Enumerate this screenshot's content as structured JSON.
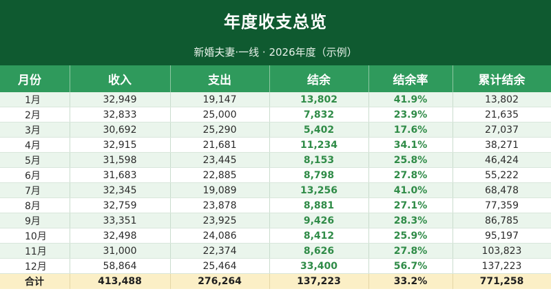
{
  "title": "年度收支总览",
  "subtitle": "新婚夫妻·一线 · 2026年度（示例）",
  "headers": [
    "月份",
    "收入",
    "支出",
    "结余",
    "结余率",
    "累计结余"
  ],
  "rows": [
    [
      "1月",
      "32,949",
      "19,147",
      "13,802",
      "41.9%",
      "13,802"
    ],
    [
      "2月",
      "32,833",
      "25,000",
      "7,832",
      "23.9%",
      "21,635"
    ],
    [
      "3月",
      "30,692",
      "25,290",
      "5,402",
      "17.6%",
      "27,037"
    ],
    [
      "4月",
      "32,915",
      "21,681",
      "11,234",
      "34.1%",
      "38,271"
    ],
    [
      "5月",
      "31,598",
      "23,445",
      "8,153",
      "25.8%",
      "46,424"
    ],
    [
      "6月",
      "31,683",
      "22,885",
      "8,798",
      "27.8%",
      "55,222"
    ],
    [
      "7月",
      "32,345",
      "19,089",
      "13,256",
      "41.0%",
      "68,478"
    ],
    [
      "8月",
      "32,759",
      "23,878",
      "8,881",
      "27.1%",
      "77,359"
    ],
    [
      "9月",
      "33,351",
      "23,925",
      "9,426",
      "28.3%",
      "86,785"
    ],
    [
      "10月",
      "32,498",
      "24,086",
      "8,412",
      "25.9%",
      "95,197"
    ],
    [
      "11月",
      "31,000",
      "22,374",
      "8,626",
      "27.8%",
      "103,823"
    ],
    [
      "12月",
      "58,864",
      "25,464",
      "33,400",
      "56.7%",
      "137,223"
    ]
  ],
  "total": [
    "合计",
    "413,488",
    "276,264",
    "137,223",
    "33.2%",
    "771,258"
  ],
  "colors": {
    "banner": "#0f5a30",
    "header": "#2f9a5c",
    "highlight_text": "#2f8b47",
    "row_alt": "#eaf5ec",
    "total_row": "#fbefc6"
  }
}
